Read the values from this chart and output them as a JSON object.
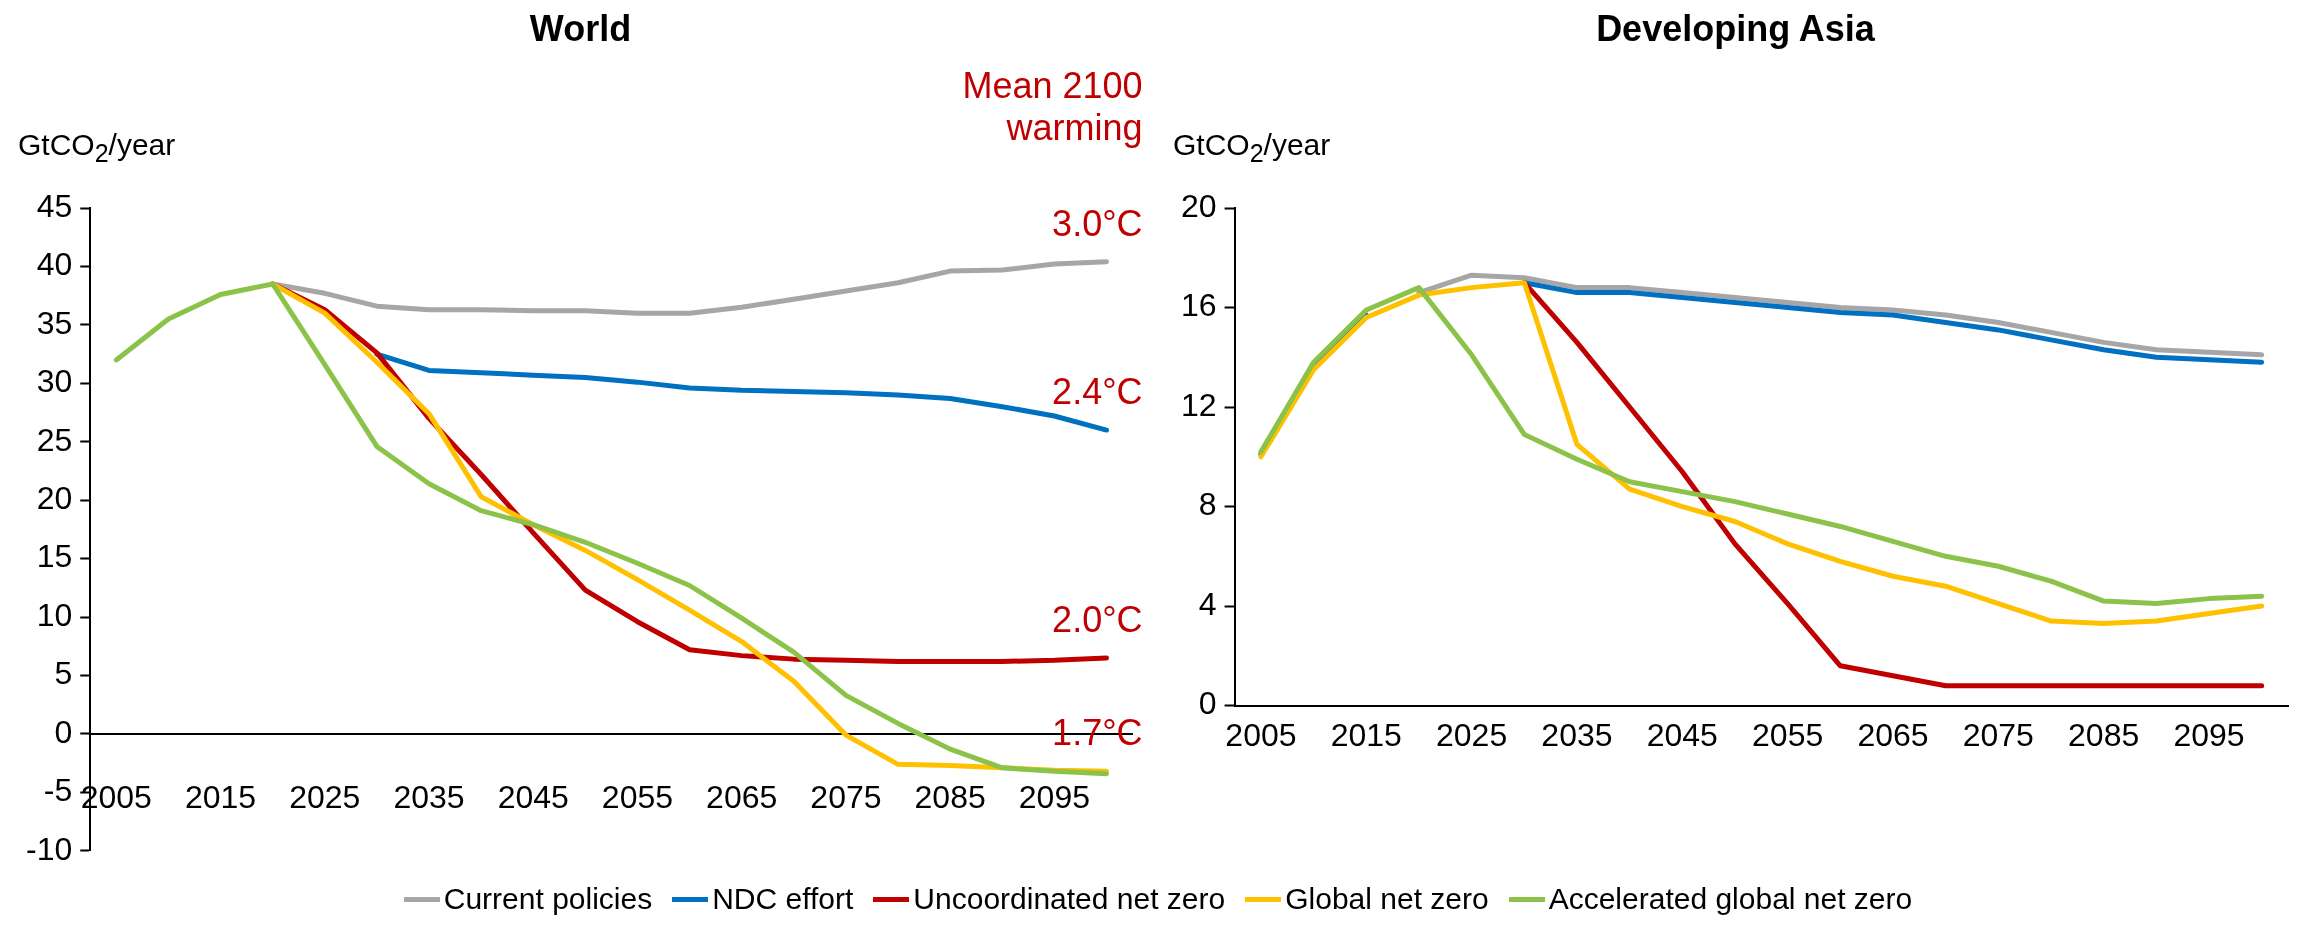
{
  "chart_data": [
    {
      "type": "line",
      "title": "World",
      "ylabel": "GtCO$_{2}$/year",
      "categories": [
        "2005",
        null,
        "2015",
        null,
        "2025",
        null,
        "2035",
        null,
        "2045",
        null,
        "2055",
        null,
        "2065",
        null,
        "2075",
        null,
        "2085",
        null,
        "2095",
        null
      ],
      "series": [
        {
          "name": "Current policies",
          "color": "#a6a6a6",
          "values": [
            null,
            null,
            null,
            38.5,
            37.7,
            36.6,
            36.3,
            36.3,
            36.2,
            36.2,
            36.0,
            36.0,
            36.5,
            37.2,
            37.9,
            38.6,
            39.6,
            39.7,
            40.2,
            40.4
          ]
        },
        {
          "name": "NDC effort",
          "color": "#0070c0",
          "values": [
            null,
            null,
            null,
            null,
            null,
            32.5,
            31.1,
            30.9,
            30.7,
            30.5,
            30.1,
            29.6,
            29.4,
            29.3,
            29.2,
            29.0,
            28.7,
            28,
            27.2,
            26
          ]
        },
        {
          "name": "Uncoordinated net zero",
          "color": "#c00000",
          "values": [
            null,
            null,
            null,
            38.5,
            36.3,
            32.6,
            27,
            22.2,
            17.2,
            12.3,
            9.6,
            7.2,
            6.7,
            6.4,
            6.3,
            6.2,
            6.2,
            6.2,
            6.3,
            6.5
          ]
        },
        {
          "name": "Global net zero",
          "color": "#ffc000",
          "values": [
            null,
            null,
            null,
            38.5,
            36,
            31.8,
            27.4,
            20.3,
            17.9,
            15.7,
            13.2,
            10.6,
            7.9,
            4.5,
            -0.1,
            -2.6,
            -2.7,
            -2.9,
            -3.1,
            -3.2
          ]
        },
        {
          "name": "Accelerated global net zero",
          "color": "#8bc34a",
          "values": [
            32,
            35.5,
            37.6,
            38.5,
            31.6,
            24.6,
            21.4,
            19.1,
            17.9,
            16.4,
            14.6,
            12.7,
            9.9,
            7.0,
            3.3,
            0.9,
            -1.3,
            -2.9,
            -3.2,
            -3.4
          ]
        }
      ],
      "ylim": [
        -10,
        45
      ],
      "yticks": [
        -10,
        -5,
        0,
        5,
        10,
        15,
        20,
        25,
        30,
        35,
        40,
        45
      ],
      "annotations": [
        "Mean 2100 warming",
        "3.0°C",
        "2.4°C",
        "2.0°C",
        "1.7°C"
      ],
      "grid": false,
      "legend": "bottom"
    },
    {
      "type": "line",
      "title": "Developing Asia",
      "ylabel": "GtCO$_{2}$/year",
      "categories": [
        "2005",
        null,
        "2015",
        null,
        "2025",
        null,
        "2035",
        null,
        "2045",
        null,
        "2055",
        null,
        "2065",
        null,
        "2075",
        null,
        "2085",
        null,
        "2095",
        null
      ],
      "series": [
        {
          "name": "Current policies",
          "color": "#a6a6a6",
          "values": [
            null,
            null,
            null,
            16.6,
            17.3,
            17.2,
            16.8,
            16.8,
            16.6,
            16.4,
            16.2,
            16.0,
            15.9,
            15.7,
            15.4,
            15.0,
            14.6,
            14.3,
            14.2,
            14.1
          ]
        },
        {
          "name": "NDC effort",
          "color": "#0070c0",
          "values": [
            10.1,
            13.7,
            15.7,
            null,
            null,
            17.0,
            16.6,
            16.6,
            16.4,
            16.2,
            16.0,
            15.8,
            15.7,
            15.4,
            15.1,
            14.7,
            14.3,
            14.0,
            13.9,
            13.8
          ]
        },
        {
          "name": "Uncoordinated net zero",
          "color": "#c00000",
          "values": [
            null,
            null,
            null,
            null,
            null,
            17.0,
            14.6,
            12.0,
            9.4,
            6.5,
            4.1,
            1.6,
            1.2,
            0.8,
            0.8,
            0.8,
            0.8,
            0.8,
            0.8,
            0.8
          ]
        },
        {
          "name": "Global net zero",
          "color": "#ffc000",
          "values": [
            10,
            13.5,
            15.6,
            16.5,
            16.8,
            17.0,
            10.5,
            8.7,
            8.0,
            7.4,
            6.5,
            5.8,
            5.2,
            4.8,
            4.1,
            3.4,
            3.3,
            3.4,
            3.7,
            4.0
          ]
        },
        {
          "name": "Accelerated global net zero",
          "color": "#8bc34a",
          "values": [
            10.2,
            13.8,
            15.9,
            16.8,
            14.1,
            10.9,
            9.9,
            9.0,
            8.6,
            8.2,
            7.7,
            7.2,
            6.6,
            6.0,
            5.6,
            5.0,
            4.2,
            4.1,
            4.3,
            4.4
          ]
        }
      ],
      "ylim": [
        0,
        20
      ],
      "yticks": [
        0,
        4,
        8,
        12,
        16,
        20
      ],
      "grid": false,
      "legend": "bottom"
    }
  ]
}
